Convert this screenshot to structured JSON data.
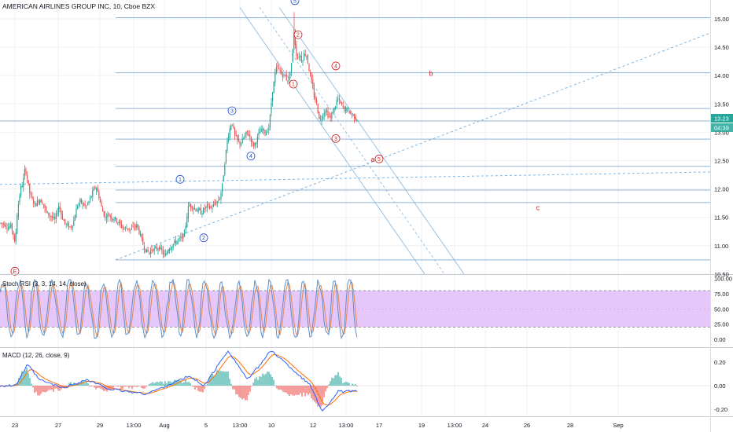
{
  "header": {
    "title": "AMERICAN AIRLINES GROUP INC, 10, Cboe BZX"
  },
  "chart_data": [
    {
      "type": "candlestick",
      "title": "AMERICAN AIRLINES GROUP INC, 10, Cboe BZX",
      "ylim": [
        10.5,
        15.1
      ],
      "y_ticks": [
        "15.00",
        "14.50",
        "14.00",
        "13.50",
        "13.00",
        "12.50",
        "12.00",
        "11.50",
        "11.00",
        "10.50"
      ],
      "x_ticks": [
        "23",
        "27",
        "29",
        "13:00",
        "Aug",
        "5",
        "13:00",
        "10",
        "12",
        "13:00",
        "17",
        "19",
        "13:00",
        "24",
        "26",
        "28",
        "Sep"
      ],
      "last_price": "13.23",
      "countdown": "04:39",
      "price_path": [
        [
          0,
          11.4
        ],
        [
          6,
          11.38
        ],
        [
          10,
          11.32
        ],
        [
          14,
          11.35
        ],
        [
          17,
          11.2
        ],
        [
          19,
          11.0
        ],
        [
          22,
          11.6
        ],
        [
          26,
          12.0
        ],
        [
          29,
          12.1
        ],
        [
          32,
          12.38
        ],
        [
          35,
          12.15
        ],
        [
          38,
          11.9
        ],
        [
          42,
          11.78
        ],
        [
          45,
          11.72
        ],
        [
          50,
          11.82
        ],
        [
          55,
          11.75
        ],
        [
          58,
          11.6
        ],
        [
          62,
          11.55
        ],
        [
          66,
          11.5
        ],
        [
          70,
          11.45
        ],
        [
          75,
          11.72
        ],
        [
          78,
          11.55
        ],
        [
          82,
          11.4
        ],
        [
          86,
          11.35
        ],
        [
          90,
          11.32
        ],
        [
          94,
          11.45
        ],
        [
          98,
          11.7
        ],
        [
          102,
          11.78
        ],
        [
          106,
          11.72
        ],
        [
          110,
          11.7
        ],
        [
          114,
          11.8
        ],
        [
          118,
          11.95
        ],
        [
          122,
          12.05
        ],
        [
          126,
          11.85
        ],
        [
          130,
          11.62
        ],
        [
          134,
          11.5
        ],
        [
          138,
          11.55
        ],
        [
          142,
          11.5
        ],
        [
          146,
          11.48
        ],
        [
          150,
          11.42
        ],
        [
          154,
          11.35
        ],
        [
          158,
          11.3
        ],
        [
          162,
          11.32
        ],
        [
          166,
          11.28
        ],
        [
          170,
          11.33
        ],
        [
          174,
          11.36
        ],
        [
          178,
          11.2
        ],
        [
          182,
          11.02
        ],
        [
          186,
          10.9
        ],
        [
          190,
          10.88
        ],
        [
          194,
          10.95
        ],
        [
          198,
          10.93
        ],
        [
          202,
          10.98
        ],
        [
          206,
          10.9
        ],
        [
          210,
          10.8
        ],
        [
          214,
          10.95
        ],
        [
          218,
          11.0
        ],
        [
          222,
          11.05
        ],
        [
          226,
          11.1
        ],
        [
          230,
          11.12
        ],
        [
          234,
          11.18
        ],
        [
          236,
          11.35
        ],
        [
          238,
          11.55
        ],
        [
          240,
          11.72
        ],
        [
          244,
          11.7
        ],
        [
          248,
          11.65
        ],
        [
          252,
          11.62
        ],
        [
          256,
          11.58
        ],
        [
          260,
          11.65
        ],
        [
          264,
          11.7
        ],
        [
          268,
          11.66
        ],
        [
          272,
          11.72
        ],
        [
          276,
          11.78
        ],
        [
          280,
          11.85
        ],
        [
          283,
          12.1
        ],
        [
          286,
          12.5
        ],
        [
          289,
          12.85
        ],
        [
          292,
          13.05
        ],
        [
          295,
          13.2
        ],
        [
          298,
          12.95
        ],
        [
          302,
          12.85
        ],
        [
          306,
          12.8
        ],
        [
          310,
          12.9
        ],
        [
          314,
          13.0
        ],
        [
          318,
          12.92
        ],
        [
          322,
          12.75
        ],
        [
          326,
          12.85
        ],
        [
          330,
          13.0
        ],
        [
          334,
          13.05
        ],
        [
          338,
          12.98
        ],
        [
          342,
          13.1
        ],
        [
          344,
          13.35
        ],
        [
          346,
          13.7
        ],
        [
          348,
          13.85
        ],
        [
          350,
          14.05
        ],
        [
          352,
          14.15
        ],
        [
          355,
          14.1
        ],
        [
          358,
          14.02
        ],
        [
          362,
          14.0
        ],
        [
          365,
          13.92
        ],
        [
          368,
          13.98
        ],
        [
          370,
          14.15
        ],
        [
          372,
          14.4
        ],
        [
          374,
          14.8
        ],
        [
          376,
          14.45
        ],
        [
          378,
          14.3
        ],
        [
          381,
          14.38
        ],
        [
          384,
          14.25
        ],
        [
          387,
          14.4
        ],
        [
          390,
          14.35
        ],
        [
          393,
          14.1
        ],
        [
          396,
          13.9
        ],
        [
          399,
          13.65
        ],
        [
          402,
          13.55
        ],
        [
          405,
          13.3
        ],
        [
          408,
          13.2
        ],
        [
          411,
          13.35
        ],
        [
          414,
          13.4
        ],
        [
          417,
          13.3
        ],
        [
          420,
          13.25
        ],
        [
          423,
          13.35
        ],
        [
          426,
          13.45
        ],
        [
          429,
          13.6
        ],
        [
          431,
          13.55
        ],
        [
          434,
          13.48
        ],
        [
          437,
          13.42
        ],
        [
          440,
          13.4
        ],
        [
          443,
          13.38
        ],
        [
          446,
          13.32
        ],
        [
          449,
          13.3
        ],
        [
          452,
          13.25
        ],
        [
          455,
          13.23
        ]
      ],
      "horizontal_levels": [
        15.02,
        14.05,
        13.42,
        13.2,
        12.88,
        12.4,
        11.98,
        11.76,
        10.75
      ],
      "wave_labels": [
        {
          "text": "E",
          "color": "red",
          "price": 10.55
        },
        {
          "text": "1",
          "color": "blue",
          "price": 12.17
        },
        {
          "text": "2",
          "color": "blue",
          "price": 11.14
        },
        {
          "text": "3",
          "color": "blue",
          "price": 13.38
        },
        {
          "text": "4",
          "color": "blue",
          "price": 12.58
        },
        {
          "text": "5",
          "color": "blue",
          "price": 15.32
        },
        {
          "text": "1",
          "color": "red",
          "price": 13.85
        },
        {
          "text": "2",
          "color": "red",
          "price": 14.72
        },
        {
          "text": "3",
          "color": "red",
          "price": 12.89
        },
        {
          "text": "4",
          "color": "red",
          "price": 14.17
        },
        {
          "text": "5",
          "color": "red",
          "price": 12.53
        }
      ],
      "letter_labels": [
        {
          "text": "a",
          "color": "red",
          "price": 12.52
        },
        {
          "text": "b",
          "color": "red",
          "price": 14.04
        },
        {
          "text": "c",
          "color": "red",
          "price": 11.67
        }
      ]
    },
    {
      "type": "line",
      "title": "Stoch RSI (3, 3, 14, 14, close)",
      "ylim": [
        -5,
        105
      ],
      "y_ticks": [
        "100.00",
        "75.00",
        "50.00",
        "25.00",
        "0.00"
      ],
      "band": [
        20,
        80
      ],
      "band_color": "#e1bdf8"
    },
    {
      "type": "bar",
      "title": "MACD (12, 26, close, 9)",
      "ylim": [
        -0.25,
        0.3
      ],
      "y_ticks": [
        "0.20",
        "0.00",
        "-0.20"
      ]
    }
  ],
  "colors": {
    "up": "#26a69a",
    "down": "#ef5350",
    "level": "#90b4d4",
    "trend": "#7fb4e0",
    "label_blue": "#1e4bd6",
    "label_red": "#d21f1f",
    "price_tag": "#26a69a",
    "grid": "#eef0f3"
  }
}
